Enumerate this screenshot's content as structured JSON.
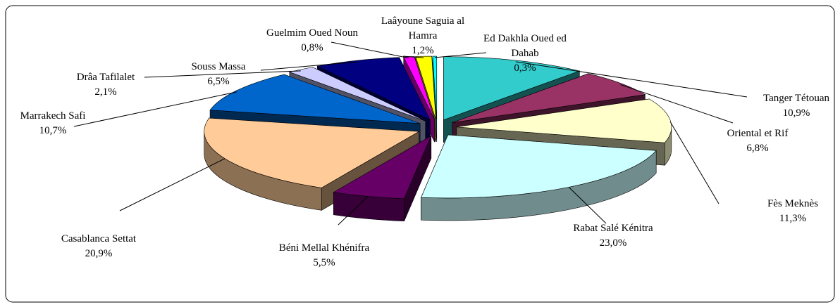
{
  "chart_data": {
    "type": "pie",
    "categories": [
      "Tanger Tétouan",
      "Oriental et Rif",
      "Fès Meknès",
      "Rabat Salé Kénitra",
      "Béni Mellal Khénifra",
      "Casablanca Settat",
      "Marrakech Safi",
      "Drâa Tafilalet",
      "Souss Massa",
      "Guelmim Oued Noun",
      "Laâyoune Saguia al Hamra",
      "Ed Dakhla Oued ed Dahab"
    ],
    "values": [
      10.9,
      6.8,
      11.3,
      23.0,
      5.5,
      20.9,
      10.7,
      2.1,
      6.5,
      0.8,
      1.2,
      0.3
    ],
    "value_labels": [
      "10,9%",
      "6,8%",
      "11,3%",
      "23,0%",
      "5,5%",
      "20,9%",
      "10,7%",
      "2,1%",
      "6,5%",
      "0,8%",
      "1,2%",
      "0,3%"
    ],
    "colors": [
      "#33cccc",
      "#993366",
      "#ffffcc",
      "#ccffff",
      "#660066",
      "#ffcc99",
      "#0066cc",
      "#ccccff",
      "#000080",
      "#ff00ff",
      "#ffff00",
      "#00ffff"
    ]
  }
}
